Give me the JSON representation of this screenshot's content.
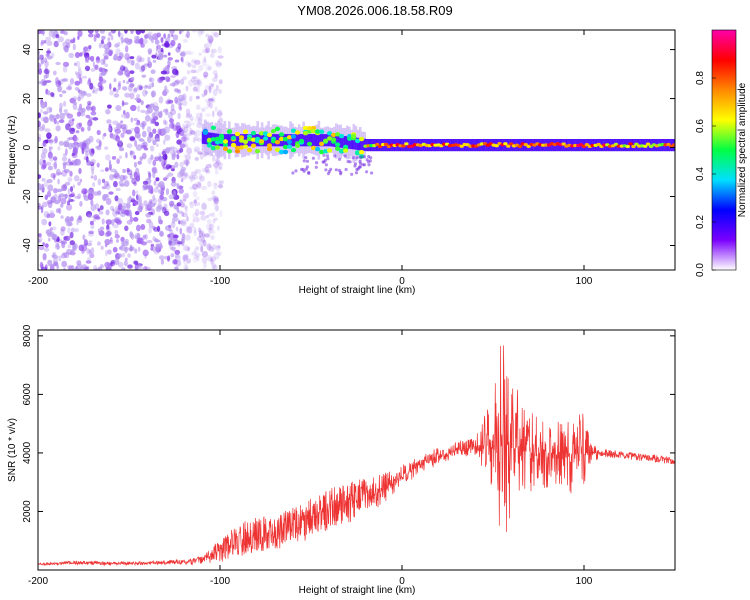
{
  "figure_title": "YM08.2026.006.18.58.R09",
  "colors": {
    "frame": "#000000",
    "snr_line": "#ee3333",
    "low_amp": "#b89af0",
    "mid_amp": "#6a1be0"
  },
  "chart_data": [
    {
      "type": "heatmap",
      "title": "",
      "xlabel": "Height of straight line (km)",
      "ylabel": "Frequency (Hz)",
      "xlim": [
        -200,
        150
      ],
      "ylim": [
        -50,
        48
      ],
      "xticks": [
        -200,
        -100,
        0,
        100
      ],
      "yticks": [
        -40,
        -20,
        0,
        20,
        40
      ],
      "colorbar": {
        "label": "Normalized spectral amplitude",
        "range": [
          0.0,
          1.0
        ],
        "ticks": [
          0.0,
          0.2,
          0.4,
          0.6,
          0.8
        ],
        "tick_labels": [
          "0.0",
          "0.2",
          "0.4",
          "0.6",
          "0.8"
        ],
        "colormap": [
          "#ffffff",
          "#7a00ff",
          "#0000ff",
          "#00e0ff",
          "#00ff44",
          "#ffff00",
          "#ff8800",
          "#ff0000",
          "#ff00aa"
        ]
      },
      "regions": [
        {
          "name": "broadband noise",
          "x_range": [
            -200,
            -105
          ],
          "freq_range": [
            -50,
            48
          ],
          "amplitude": 0.1
        },
        {
          "name": "turbulent band",
          "x_range": [
            -110,
            -20
          ],
          "freq_center": 2,
          "freq_width": 12,
          "amplitude": 0.45
        },
        {
          "name": "stable carrier",
          "x_range": [
            -20,
            150
          ],
          "freq_center": 1,
          "freq_width": 6,
          "amplitude": 0.75
        }
      ],
      "carrier_profile": {
        "x": [
          -110,
          -100,
          -90,
          -80,
          -70,
          -60,
          -50,
          -40,
          -30,
          -20,
          -10,
          0,
          25,
          50,
          75,
          100,
          125,
          150
        ],
        "freq_center": [
          4,
          3,
          3,
          3,
          3,
          3,
          3,
          3,
          2,
          1,
          1,
          1,
          1,
          1,
          1,
          1,
          1,
          1
        ],
        "peak_amplitude": [
          0.45,
          0.55,
          0.6,
          0.55,
          0.55,
          0.5,
          0.5,
          0.55,
          0.5,
          0.6,
          0.75,
          0.8,
          0.7,
          0.75,
          0.8,
          0.8,
          0.7,
          0.65
        ]
      }
    },
    {
      "type": "line",
      "title": "",
      "xlabel": "Height of straight line (km)",
      "ylabel": "SNR (10 * v/v)",
      "xlim": [
        -200,
        150
      ],
      "ylim": [
        0,
        8200
      ],
      "xticks": [
        -200,
        -100,
        0,
        100
      ],
      "yticks": [
        2000,
        4000,
        6000,
        8000
      ],
      "series": [
        {
          "name": "SNR",
          "x": [
            -200,
            -180,
            -160,
            -140,
            -120,
            -110,
            -100,
            -90,
            -80,
            -70,
            -60,
            -50,
            -40,
            -30,
            -20,
            -10,
            0,
            10,
            20,
            30,
            40,
            50,
            55,
            60,
            70,
            80,
            90,
            100,
            105,
            110,
            120,
            130,
            140,
            150
          ],
          "values": [
            200,
            250,
            220,
            240,
            280,
            300,
            500,
            800,
            1000,
            1000,
            1300,
            1500,
            1800,
            2000,
            2400,
            2800,
            3200,
            3600,
            3900,
            4100,
            4200,
            4300,
            4400,
            4200,
            4000,
            4000,
            3900,
            4000,
            4000,
            4000,
            3950,
            3850,
            3800,
            3700
          ],
          "noise": [
            40,
            60,
            60,
            60,
            80,
            150,
            500,
            700,
            800,
            700,
            800,
            900,
            900,
            900,
            700,
            500,
            400,
            300,
            300,
            300,
            300,
            1800,
            3600,
            2400,
            1400,
            1200,
            1300,
            1400,
            300,
            150,
            130,
            120,
            120,
            120
          ]
        }
      ]
    }
  ]
}
